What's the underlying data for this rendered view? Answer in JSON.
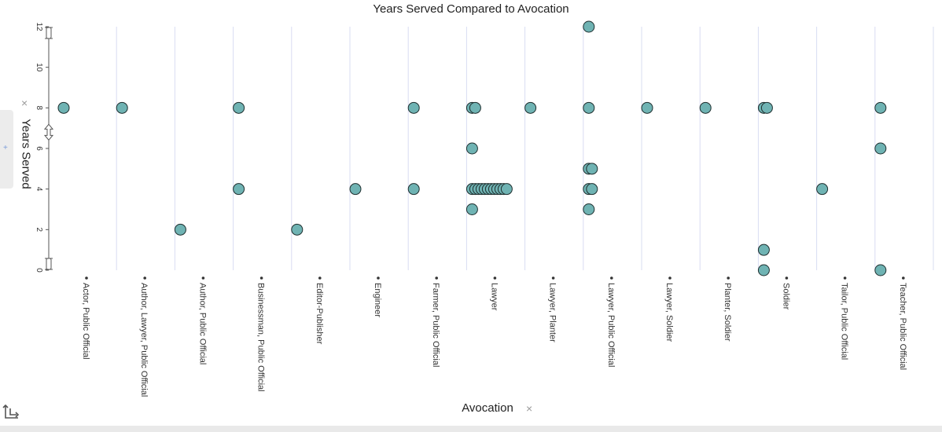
{
  "chart_data": {
    "type": "scatter",
    "title": "Years Served Compared to Avocation",
    "xlabel": "Avocation",
    "ylabel": "Years Served",
    "ylim": [
      0,
      12
    ],
    "yticks": [
      "0",
      "2",
      "4",
      "6",
      "8",
      "10",
      "12"
    ],
    "categories": [
      "Actor, Public Official",
      "Author, Lawyer, Public Official",
      "Author, Public Official",
      "Businessman, Public Official",
      "Editor-Publisher",
      "Engineer",
      "Farmer, Public Official",
      "Lawyer",
      "Lawyer, Planter",
      "Lawyer, Public Official",
      "Lawyer, Soldier",
      "Planter, Soldier",
      "Soldier",
      "Tailor, Public Official",
      "Teacher, Public Official"
    ],
    "points": [
      {
        "x": "Actor, Public Official",
        "y": 8
      },
      {
        "x": "Author, Lawyer, Public Official",
        "y": 8
      },
      {
        "x": "Author, Public Official",
        "y": 2
      },
      {
        "x": "Businessman, Public Official",
        "y": 8
      },
      {
        "x": "Businessman, Public Official",
        "y": 4
      },
      {
        "x": "Editor-Publisher",
        "y": 2
      },
      {
        "x": "Engineer",
        "y": 4
      },
      {
        "x": "Farmer, Public Official",
        "y": 8
      },
      {
        "x": "Farmer, Public Official",
        "y": 4
      },
      {
        "x": "Lawyer",
        "y": 8
      },
      {
        "x": "Lawyer",
        "y": 8
      },
      {
        "x": "Lawyer",
        "y": 6
      },
      {
        "x": "Lawyer",
        "y": 4
      },
      {
        "x": "Lawyer",
        "y": 4
      },
      {
        "x": "Lawyer",
        "y": 4
      },
      {
        "x": "Lawyer",
        "y": 4
      },
      {
        "x": "Lawyer",
        "y": 4
      },
      {
        "x": "Lawyer",
        "y": 4
      },
      {
        "x": "Lawyer",
        "y": 4
      },
      {
        "x": "Lawyer",
        "y": 4
      },
      {
        "x": "Lawyer",
        "y": 4
      },
      {
        "x": "Lawyer",
        "y": 4
      },
      {
        "x": "Lawyer",
        "y": 4
      },
      {
        "x": "Lawyer",
        "y": 4
      },
      {
        "x": "Lawyer",
        "y": 3
      },
      {
        "x": "Lawyer, Planter",
        "y": 8
      },
      {
        "x": "Lawyer, Public Official",
        "y": 12
      },
      {
        "x": "Lawyer, Public Official",
        "y": 8
      },
      {
        "x": "Lawyer, Public Official",
        "y": 5
      },
      {
        "x": "Lawyer, Public Official",
        "y": 5
      },
      {
        "x": "Lawyer, Public Official",
        "y": 4
      },
      {
        "x": "Lawyer, Public Official",
        "y": 4
      },
      {
        "x": "Lawyer, Public Official",
        "y": 3
      },
      {
        "x": "Lawyer, Soldier",
        "y": 8
      },
      {
        "x": "Planter, Soldier",
        "y": 8
      },
      {
        "x": "Soldier",
        "y": 8
      },
      {
        "x": "Soldier",
        "y": 8
      },
      {
        "x": "Soldier",
        "y": 1
      },
      {
        "x": "Soldier",
        "y": 0
      },
      {
        "x": "Tailor, Public Official",
        "y": 4
      },
      {
        "x": "Teacher, Public Official",
        "y": 8
      },
      {
        "x": "Teacher, Public Official",
        "y": 6
      },
      {
        "x": "Teacher, Public Official",
        "y": 0
      }
    ],
    "grid": true,
    "colors": {
      "point_fill": "#6fb3b3",
      "point_stroke": "#1f2f2f",
      "grid": "#d8dcf2"
    }
  },
  "ui": {
    "remove_glyph": "×",
    "add_glyph": "+"
  }
}
